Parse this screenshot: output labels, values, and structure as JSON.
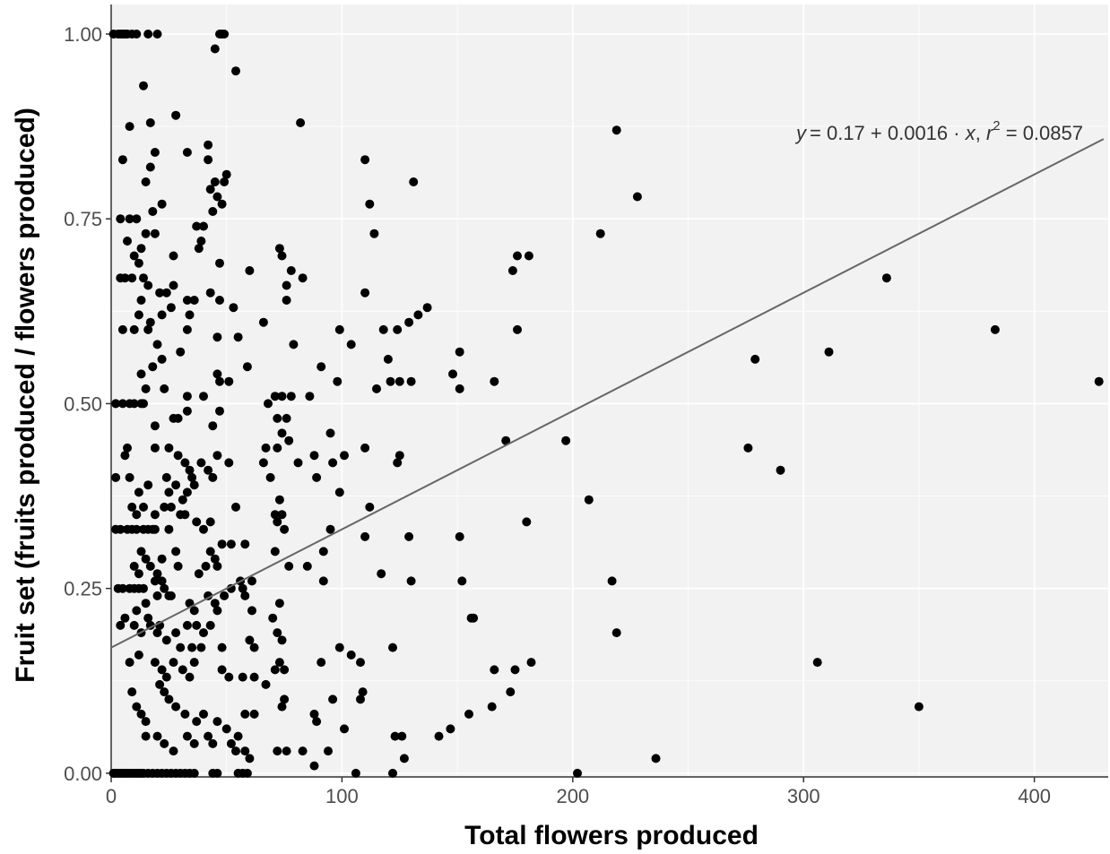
{
  "chart_data": {
    "type": "scatter",
    "xlabel": "Total flowers produced",
    "ylabel": "Fruit set (fruits produced / flowers produced)",
    "xlim": [
      0,
      432
    ],
    "ylim": [
      -0.005,
      1.04
    ],
    "x_ticks": [
      0,
      100,
      200,
      300,
      400
    ],
    "y_ticks": [
      0,
      0.25,
      0.5,
      0.75,
      1
    ],
    "x_tick_labels": [
      "0",
      "100",
      "200",
      "300",
      "400"
    ],
    "y_tick_labels": [
      "0.00",
      "0.25",
      "0.50",
      "0.75",
      "1.00"
    ],
    "grid": true,
    "colors": {
      "panel": "#f2f2f2",
      "grid": "#ffffff",
      "point": "#000000",
      "line": "#666666"
    },
    "annotation": {
      "y_var": "y",
      "intercept_part": "= 0.17 + 0.0016 · ",
      "x_var": "x",
      "comma": ",  ",
      "r_var": "r",
      "r_exp": "2",
      "r_value": " = 0.0857"
    },
    "regression": {
      "intercept": 0.17,
      "slope": 0.0016,
      "x_range": [
        0,
        430
      ]
    },
    "points": [
      [
        1,
        1
      ],
      [
        3,
        1
      ],
      [
        4,
        1
      ],
      [
        5,
        1
      ],
      [
        6,
        1
      ],
      [
        7,
        1
      ],
      [
        9,
        1
      ],
      [
        11,
        1
      ],
      [
        16,
        1
      ],
      [
        20,
        1
      ],
      [
        47,
        1
      ],
      [
        48,
        1
      ],
      [
        49,
        1
      ],
      [
        45,
        0.98
      ],
      [
        54,
        0.95
      ],
      [
        14,
        0.93
      ],
      [
        28,
        0.89
      ],
      [
        17,
        0.88
      ],
      [
        8,
        0.875
      ],
      [
        82,
        0.88
      ],
      [
        33,
        0.84
      ],
      [
        42,
        0.85
      ],
      [
        45,
        0.8
      ],
      [
        50,
        0.81
      ],
      [
        110,
        0.83
      ],
      [
        131,
        0.8
      ],
      [
        219,
        0.87
      ],
      [
        228,
        0.78
      ],
      [
        5,
        0.83
      ],
      [
        17,
        0.82
      ],
      [
        19,
        0.84
      ],
      [
        42,
        0.83
      ],
      [
        43,
        0.79
      ],
      [
        46,
        0.78
      ],
      [
        48,
        0.77
      ],
      [
        49,
        0.8
      ],
      [
        15,
        0.8
      ],
      [
        22,
        0.77
      ],
      [
        112,
        0.77
      ],
      [
        4,
        0.75
      ],
      [
        8,
        0.75
      ],
      [
        11,
        0.75
      ],
      [
        13,
        0.71
      ],
      [
        18,
        0.76
      ],
      [
        19,
        0.73
      ],
      [
        37,
        0.74
      ],
      [
        40,
        0.74
      ],
      [
        44,
        0.76
      ],
      [
        114,
        0.73
      ],
      [
        212,
        0.73
      ],
      [
        7,
        0.72
      ],
      [
        10,
        0.7
      ],
      [
        15,
        0.73
      ],
      [
        12,
        0.69
      ],
      [
        16,
        0.66
      ],
      [
        27,
        0.7
      ],
      [
        38,
        0.71
      ],
      [
        39,
        0.72
      ],
      [
        47,
        0.69
      ],
      [
        73,
        0.71
      ],
      [
        74,
        0.7
      ],
      [
        176,
        0.7
      ],
      [
        181,
        0.7
      ],
      [
        174,
        0.68
      ],
      [
        336,
        0.67
      ],
      [
        4,
        0.67
      ],
      [
        6,
        0.67
      ],
      [
        9,
        0.67
      ],
      [
        14,
        0.67
      ],
      [
        13,
        0.64
      ],
      [
        21,
        0.65
      ],
      [
        24,
        0.65
      ],
      [
        27,
        0.66
      ],
      [
        33,
        0.64
      ],
      [
        36,
        0.64
      ],
      [
        43,
        0.65
      ],
      [
        47,
        0.64
      ],
      [
        60,
        0.68
      ],
      [
        76,
        0.66
      ],
      [
        78,
        0.68
      ],
      [
        83,
        0.67
      ],
      [
        110,
        0.65
      ],
      [
        76,
        0.64
      ],
      [
        12,
        0.62
      ],
      [
        17,
        0.61
      ],
      [
        22,
        0.62
      ],
      [
        26,
        0.63
      ],
      [
        34,
        0.62
      ],
      [
        53,
        0.63
      ],
      [
        66,
        0.61
      ],
      [
        5,
        0.6
      ],
      [
        10,
        0.6
      ],
      [
        16,
        0.6
      ],
      [
        33,
        0.6
      ],
      [
        46,
        0.59
      ],
      [
        55,
        0.59
      ],
      [
        99,
        0.6
      ],
      [
        104,
        0.58
      ],
      [
        118,
        0.6
      ],
      [
        124,
        0.6
      ],
      [
        129,
        0.61
      ],
      [
        133,
        0.62
      ],
      [
        137,
        0.63
      ],
      [
        176,
        0.6
      ],
      [
        383,
        0.6
      ],
      [
        30,
        0.57
      ],
      [
        20,
        0.58
      ],
      [
        22,
        0.56
      ],
      [
        79,
        0.58
      ],
      [
        151,
        0.57
      ],
      [
        311,
        0.57
      ],
      [
        18,
        0.55
      ],
      [
        46,
        0.54
      ],
      [
        59,
        0.55
      ],
      [
        91,
        0.55
      ],
      [
        120,
        0.56
      ],
      [
        13,
        0.54
      ],
      [
        15,
        0.52
      ],
      [
        23,
        0.52
      ],
      [
        33,
        0.51
      ],
      [
        40,
        0.51
      ],
      [
        47,
        0.53
      ],
      [
        51,
        0.53
      ],
      [
        71,
        0.51
      ],
      [
        74,
        0.51
      ],
      [
        78,
        0.51
      ],
      [
        86,
        0.51
      ],
      [
        98,
        0.53
      ],
      [
        115,
        0.52
      ],
      [
        121,
        0.53
      ],
      [
        125,
        0.53
      ],
      [
        130,
        0.53
      ],
      [
        148,
        0.54
      ],
      [
        151,
        0.52
      ],
      [
        166,
        0.53
      ],
      [
        279,
        0.56
      ],
      [
        428,
        0.53
      ],
      [
        2,
        0.5
      ],
      [
        5,
        0.5
      ],
      [
        8,
        0.5
      ],
      [
        10,
        0.5
      ],
      [
        13,
        0.5
      ],
      [
        14,
        0.5
      ],
      [
        68,
        0.5
      ],
      [
        47,
        0.49
      ],
      [
        27,
        0.48
      ],
      [
        29,
        0.48
      ],
      [
        33,
        0.49
      ],
      [
        72,
        0.48
      ],
      [
        74,
        0.46
      ],
      [
        76,
        0.48
      ],
      [
        77,
        0.45
      ],
      [
        19,
        0.47
      ],
      [
        44,
        0.47
      ],
      [
        95,
        0.46
      ],
      [
        7,
        0.44
      ],
      [
        19,
        0.44
      ],
      [
        25,
        0.44
      ],
      [
        29,
        0.43
      ],
      [
        32,
        0.42
      ],
      [
        34,
        0.41
      ],
      [
        35,
        0.4
      ],
      [
        39,
        0.42
      ],
      [
        46,
        0.43
      ],
      [
        51,
        0.42
      ],
      [
        67,
        0.44
      ],
      [
        72,
        0.44
      ],
      [
        81,
        0.42
      ],
      [
        88,
        0.43
      ],
      [
        96,
        0.42
      ],
      [
        101,
        0.43
      ],
      [
        110,
        0.44
      ],
      [
        124,
        0.42
      ],
      [
        125,
        0.43
      ],
      [
        171,
        0.45
      ],
      [
        197,
        0.45
      ],
      [
        276,
        0.44
      ],
      [
        290,
        0.41
      ],
      [
        6,
        0.43
      ],
      [
        8,
        0.4
      ],
      [
        12,
        0.38
      ],
      [
        16,
        0.39
      ],
      [
        24,
        0.4
      ],
      [
        25,
        0.38
      ],
      [
        28,
        0.39
      ],
      [
        31,
        0.37
      ],
      [
        33,
        0.38
      ],
      [
        36,
        0.39
      ],
      [
        42,
        0.41
      ],
      [
        44,
        0.4
      ],
      [
        54,
        0.36
      ],
      [
        66,
        0.42
      ],
      [
        69,
        0.4
      ],
      [
        73,
        0.37
      ],
      [
        74,
        0.35
      ],
      [
        89,
        0.4
      ],
      [
        99,
        0.38
      ],
      [
        207,
        0.37
      ],
      [
        2,
        0.4
      ],
      [
        9,
        0.36
      ],
      [
        11,
        0.35
      ],
      [
        14,
        0.36
      ],
      [
        19,
        0.35
      ],
      [
        23,
        0.36
      ],
      [
        26,
        0.36
      ],
      [
        30,
        0.35
      ],
      [
        32,
        0.35
      ],
      [
        37,
        0.34
      ],
      [
        43,
        0.34
      ],
      [
        48,
        0.31
      ],
      [
        52,
        0.31
      ],
      [
        58,
        0.31
      ],
      [
        71,
        0.35
      ],
      [
        72,
        0.34
      ],
      [
        75,
        0.33
      ],
      [
        95,
        0.33
      ],
      [
        112,
        0.36
      ],
      [
        180,
        0.34
      ],
      [
        2,
        0.33
      ],
      [
        4,
        0.33
      ],
      [
        7,
        0.33
      ],
      [
        9,
        0.33
      ],
      [
        11,
        0.33
      ],
      [
        14,
        0.33
      ],
      [
        16,
        0.33
      ],
      [
        18,
        0.33
      ],
      [
        19,
        0.33
      ],
      [
        25,
        0.33
      ],
      [
        40,
        0.33
      ],
      [
        13,
        0.3
      ],
      [
        15,
        0.29
      ],
      [
        22,
        0.29
      ],
      [
        28,
        0.3
      ],
      [
        29,
        0.28
      ],
      [
        43,
        0.3
      ],
      [
        45,
        0.29
      ],
      [
        46,
        0.28
      ],
      [
        71,
        0.3
      ],
      [
        92,
        0.3
      ],
      [
        110,
        0.32
      ],
      [
        129,
        0.32
      ],
      [
        151,
        0.32
      ],
      [
        10,
        0.28
      ],
      [
        12,
        0.27
      ],
      [
        17,
        0.28
      ],
      [
        19,
        0.26
      ],
      [
        20,
        0.27
      ],
      [
        22,
        0.26
      ],
      [
        23,
        0.25
      ],
      [
        25,
        0.24
      ],
      [
        38,
        0.27
      ],
      [
        41,
        0.28
      ],
      [
        56,
        0.26
      ],
      [
        61,
        0.26
      ],
      [
        77,
        0.28
      ],
      [
        85,
        0.28
      ],
      [
        92,
        0.26
      ],
      [
        117,
        0.27
      ],
      [
        130,
        0.26
      ],
      [
        152,
        0.26
      ],
      [
        217,
        0.26
      ],
      [
        3,
        0.25
      ],
      [
        5,
        0.25
      ],
      [
        8,
        0.25
      ],
      [
        10,
        0.25
      ],
      [
        12,
        0.25
      ],
      [
        14,
        0.25
      ],
      [
        15,
        0.23
      ],
      [
        20,
        0.24
      ],
      [
        26,
        0.24
      ],
      [
        34,
        0.23
      ],
      [
        36,
        0.22
      ],
      [
        42,
        0.24
      ],
      [
        45,
        0.23
      ],
      [
        49,
        0.24
      ],
      [
        52,
        0.25
      ],
      [
        57,
        0.25
      ],
      [
        58,
        0.24
      ],
      [
        61,
        0.22
      ],
      [
        70,
        0.21
      ],
      [
        73,
        0.23
      ],
      [
        11,
        0.22
      ],
      [
        16,
        0.21
      ],
      [
        21,
        0.2
      ],
      [
        28,
        0.19
      ],
      [
        33,
        0.2
      ],
      [
        37,
        0.2
      ],
      [
        40,
        0.19
      ],
      [
        43,
        0.2
      ],
      [
        46,
        0.22
      ],
      [
        4,
        0.2
      ],
      [
        6,
        0.21
      ],
      [
        10,
        0.2
      ],
      [
        13,
        0.19
      ],
      [
        17,
        0.2
      ],
      [
        20,
        0.19
      ],
      [
        24,
        0.18
      ],
      [
        30,
        0.17
      ],
      [
        35,
        0.17
      ],
      [
        39,
        0.17
      ],
      [
        48,
        0.17
      ],
      [
        60,
        0.18
      ],
      [
        62,
        0.17
      ],
      [
        72,
        0.19
      ],
      [
        74,
        0.18
      ],
      [
        122,
        0.17
      ],
      [
        156,
        0.21
      ],
      [
        157,
        0.21
      ],
      [
        219,
        0.19
      ],
      [
        8,
        0.15
      ],
      [
        12,
        0.16
      ],
      [
        19,
        0.15
      ],
      [
        22,
        0.14
      ],
      [
        24,
        0.13
      ],
      [
        27,
        0.15
      ],
      [
        31,
        0.14
      ],
      [
        34,
        0.13
      ],
      [
        36,
        0.15
      ],
      [
        48,
        0.14
      ],
      [
        51,
        0.13
      ],
      [
        57,
        0.13
      ],
      [
        62,
        0.13
      ],
      [
        67,
        0.12
      ],
      [
        71,
        0.14
      ],
      [
        73,
        0.15
      ],
      [
        75,
        0.14
      ],
      [
        91,
        0.15
      ],
      [
        99,
        0.17
      ],
      [
        104,
        0.16
      ],
      [
        108,
        0.15
      ],
      [
        166,
        0.14
      ],
      [
        175,
        0.14
      ],
      [
        182,
        0.15
      ],
      [
        306,
        0.15
      ],
      [
        9,
        0.11
      ],
      [
        11,
        0.09
      ],
      [
        13,
        0.08
      ],
      [
        15,
        0.07
      ],
      [
        21,
        0.12
      ],
      [
        23,
        0.11
      ],
      [
        25,
        0.1
      ],
      [
        28,
        0.09
      ],
      [
        32,
        0.08
      ],
      [
        37,
        0.07
      ],
      [
        40,
        0.08
      ],
      [
        46,
        0.07
      ],
      [
        50,
        0.06
      ],
      [
        55,
        0.05
      ],
      [
        58,
        0.08
      ],
      [
        62,
        0.08
      ],
      [
        74,
        0.09
      ],
      [
        75,
        0.1
      ],
      [
        88,
        0.08
      ],
      [
        89,
        0.07
      ],
      [
        96,
        0.1
      ],
      [
        108,
        0.1
      ],
      [
        109,
        0.11
      ],
      [
        165,
        0.09
      ],
      [
        173,
        0.11
      ],
      [
        350,
        0.09
      ],
      [
        15,
        0.05
      ],
      [
        20,
        0.05
      ],
      [
        23,
        0.04
      ],
      [
        27,
        0.03
      ],
      [
        33,
        0.05
      ],
      [
        36,
        0.04
      ],
      [
        42,
        0.05
      ],
      [
        44,
        0.04
      ],
      [
        52,
        0.04
      ],
      [
        54,
        0.03
      ],
      [
        58,
        0.03
      ],
      [
        60,
        0.02
      ],
      [
        72,
        0.03
      ],
      [
        76,
        0.03
      ],
      [
        83,
        0.03
      ],
      [
        94,
        0.03
      ],
      [
        101,
        0.06
      ],
      [
        123,
        0.05
      ],
      [
        126,
        0.05
      ],
      [
        127,
        0.02
      ],
      [
        142,
        0.05
      ],
      [
        147,
        0.06
      ],
      [
        155,
        0.08
      ],
      [
        88,
        0.01
      ],
      [
        202,
        0
      ],
      [
        236,
        0.02
      ],
      [
        1,
        0
      ],
      [
        2,
        0
      ],
      [
        3,
        0
      ],
      [
        4,
        0
      ],
      [
        5,
        0
      ],
      [
        6,
        0
      ],
      [
        7,
        0
      ],
      [
        8,
        0
      ],
      [
        9,
        0
      ],
      [
        10,
        0
      ],
      [
        11,
        0
      ],
      [
        12,
        0
      ],
      [
        13,
        0
      ],
      [
        14,
        0
      ],
      [
        16,
        0
      ],
      [
        18,
        0
      ],
      [
        20,
        0
      ],
      [
        22,
        0
      ],
      [
        24,
        0
      ],
      [
        26,
        0
      ],
      [
        28,
        0
      ],
      [
        30,
        0
      ],
      [
        32,
        0
      ],
      [
        34,
        0
      ],
      [
        36,
        0
      ],
      [
        44,
        0
      ],
      [
        46,
        0
      ],
      [
        55,
        0
      ],
      [
        57,
        0
      ],
      [
        59,
        0
      ],
      [
        106,
        0
      ],
      [
        122,
        0
      ]
    ]
  }
}
